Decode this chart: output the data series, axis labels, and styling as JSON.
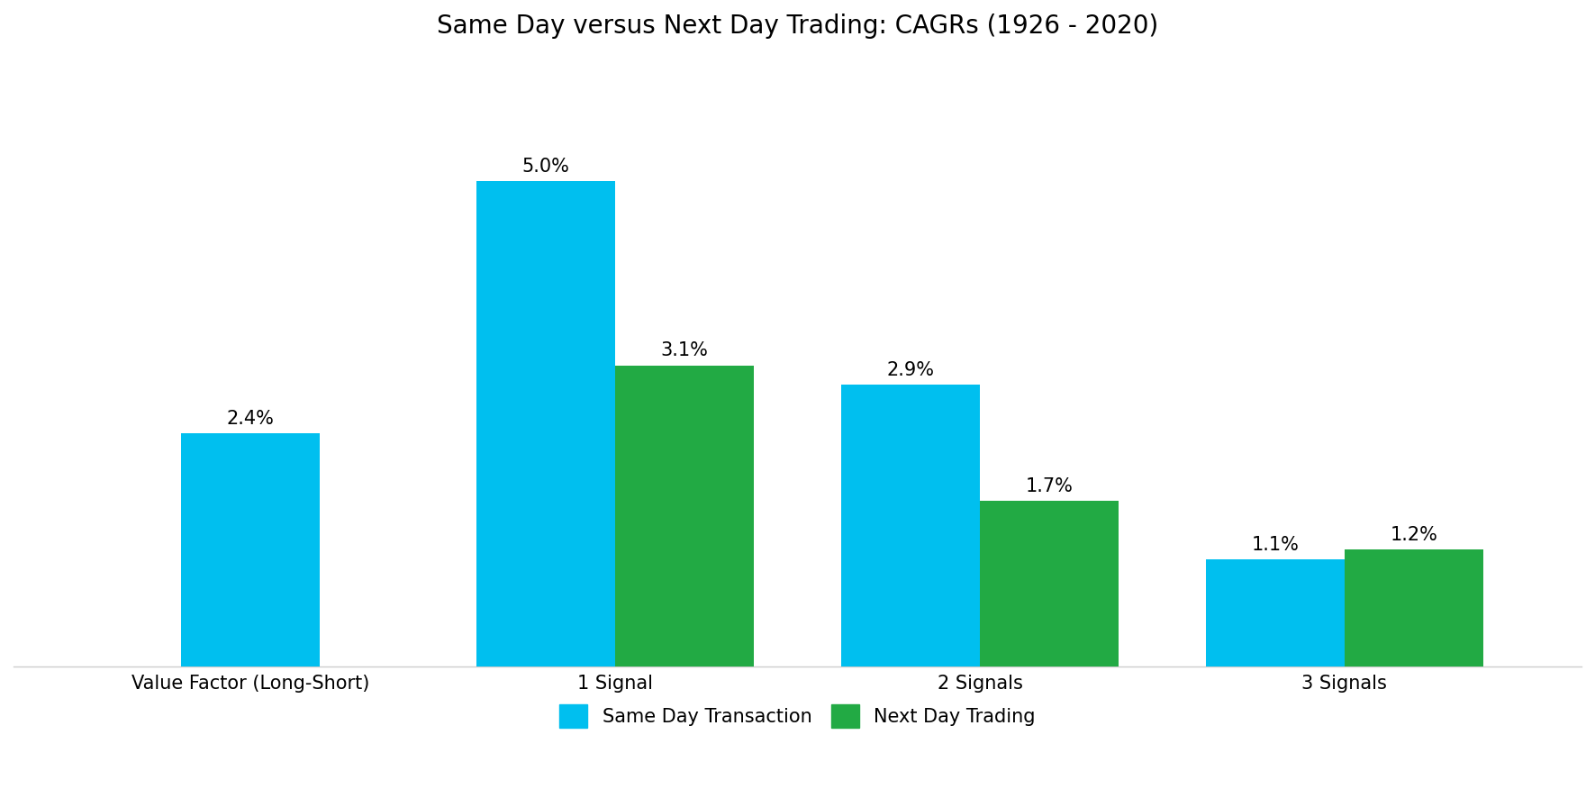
{
  "title": "Same Day versus Next Day Trading: CAGRs (1926 - 2020)",
  "categories": [
    "Value Factor (Long-Short)",
    "1 Signal",
    "2 Signals",
    "3 Signals"
  ],
  "same_day_values": [
    2.4,
    5.0,
    2.9,
    1.1
  ],
  "next_day_values": [
    null,
    3.1,
    1.7,
    1.2
  ],
  "same_day_labels": [
    "2.4%",
    "5.0%",
    "2.9%",
    "1.1%"
  ],
  "next_day_labels": [
    "3.1%",
    "1.7%",
    "1.2%"
  ],
  "same_day_color": "#00BFEF",
  "next_day_color": "#22AA44",
  "bar_width": 0.38,
  "ylim": [
    0,
    6.2
  ],
  "title_fontsize": 20,
  "label_fontsize": 15,
  "tick_fontsize": 15,
  "legend_fontsize": 15,
  "legend_labels": [
    "Same Day Transaction",
    "Next Day Trading"
  ],
  "background_color": "#ffffff"
}
